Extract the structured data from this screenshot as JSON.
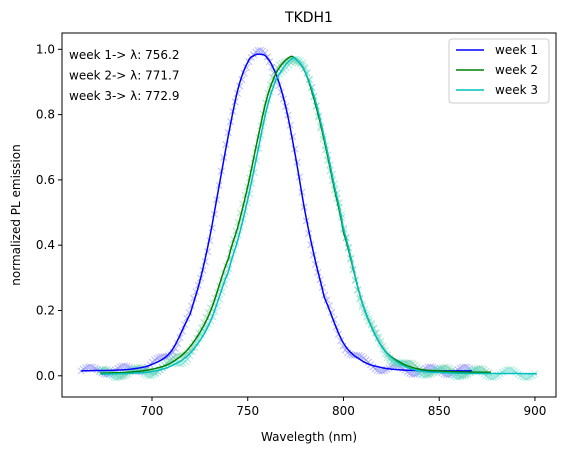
{
  "chart_data": {
    "type": "line",
    "title": "TKDH1",
    "xlabel": "Wavelegth (nm)",
    "ylabel": "normalized PL emission",
    "xlim": [
      653,
      911
    ],
    "ylim": [
      -0.065,
      1.05
    ],
    "xticks": [
      700,
      750,
      800,
      850,
      900
    ],
    "yticks": [
      0.0,
      0.2,
      0.4,
      0.6,
      0.8,
      1.0
    ],
    "xtick_labels": [
      "700",
      "750",
      "800",
      "850",
      "900"
    ],
    "ytick_labels": [
      "0.0",
      "0.2",
      "0.4",
      "0.6",
      "0.8",
      "1.0"
    ],
    "grid": false,
    "legend_position": "top-right",
    "annotations": [
      "week 1-> λ: 756.2",
      "week 2-> λ: 771.7",
      "week 3-> λ: 772.9"
    ],
    "series": [
      {
        "name": "week 1",
        "color": "#0000ff",
        "marker_color": "#8080ff",
        "x": [
          663,
          670,
          680,
          690,
          700,
          710,
          720,
          725,
          730,
          735,
          740,
          745,
          750,
          753,
          756.2,
          760,
          765,
          770,
          775,
          780,
          785,
          790,
          800,
          810,
          820,
          830,
          840,
          850,
          860,
          867
        ],
        "y": [
          0.015,
          0.016,
          0.017,
          0.021,
          0.035,
          0.075,
          0.19,
          0.29,
          0.42,
          0.58,
          0.74,
          0.88,
          0.96,
          0.98,
          0.985,
          0.975,
          0.92,
          0.82,
          0.67,
          0.5,
          0.36,
          0.24,
          0.1,
          0.045,
          0.025,
          0.018,
          0.016,
          0.015,
          0.015,
          0.015
        ]
      },
      {
        "name": "week 2",
        "color": "#008000",
        "marker_color": "#66c89a",
        "x": [
          673,
          680,
          690,
          700,
          710,
          720,
          730,
          740,
          745,
          750,
          755,
          760,
          765,
          771.7,
          775,
          780,
          785,
          790,
          795,
          800,
          810,
          820,
          830,
          840,
          850,
          860,
          870,
          877
        ],
        "y": [
          0.008,
          0.009,
          0.012,
          0.02,
          0.04,
          0.09,
          0.19,
          0.36,
          0.46,
          0.58,
          0.72,
          0.85,
          0.93,
          0.975,
          0.97,
          0.93,
          0.84,
          0.72,
          0.58,
          0.44,
          0.22,
          0.09,
          0.04,
          0.02,
          0.015,
          0.012,
          0.011,
          0.011
        ]
      },
      {
        "name": "week 3",
        "color": "#00bfbf",
        "marker_color": "#5fd8c8",
        "x": [
          673,
          680,
          690,
          700,
          710,
          720,
          730,
          740,
          745,
          750,
          755,
          760,
          765,
          772.9,
          776,
          780,
          785,
          790,
          795,
          800,
          810,
          820,
          830,
          840,
          850,
          860,
          870,
          880,
          890,
          901
        ],
        "y": [
          0.005,
          0.006,
          0.008,
          0.013,
          0.03,
          0.07,
          0.16,
          0.32,
          0.42,
          0.54,
          0.68,
          0.82,
          0.91,
          0.97,
          0.965,
          0.93,
          0.85,
          0.73,
          0.59,
          0.45,
          0.22,
          0.09,
          0.035,
          0.015,
          0.01,
          0.008,
          0.007,
          0.007,
          0.007,
          0.006
        ]
      }
    ]
  }
}
